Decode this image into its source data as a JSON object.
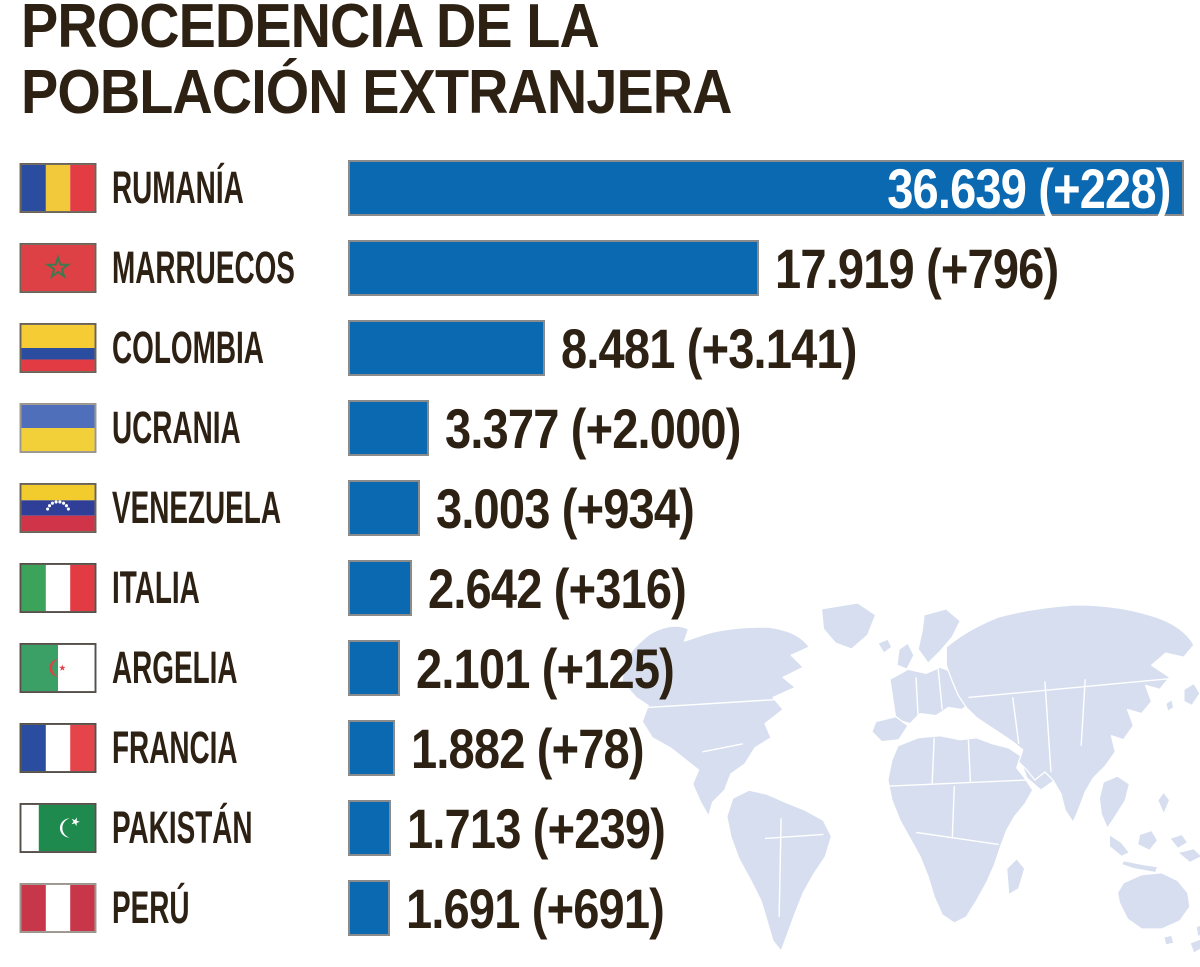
{
  "title": {
    "line1": "PROCEDENCIA DE LA",
    "line2": "POBLACIÓN EXTRANJERA"
  },
  "colors": {
    "text": "#2d2114",
    "bar_fill": "#0b69b2",
    "bar_border": "#8b8b8b",
    "value_inside_text": "#ffffff",
    "map_watermark": "#d6deef"
  },
  "chart_data": {
    "type": "bar",
    "orientation": "horizontal",
    "title": "PROCEDENCIA DE LA POBLACIÓN EXTRANJERA",
    "axis_max": 36639,
    "grid": false,
    "categories": [
      "RUMANÍA",
      "MARRUECOS",
      "COLOMBIA",
      "UCRANIA",
      "VENEZUELA",
      "ITALIA",
      "ARGELIA",
      "FRANCIA",
      "PAKISTÁN",
      "PERÚ"
    ],
    "values": [
      36639,
      17919,
      8481,
      3377,
      3003,
      2642,
      2101,
      1882,
      1713,
      1691
    ],
    "deltas": [
      228,
      796,
      3141,
      2000,
      934,
      316,
      125,
      78,
      239,
      691
    ],
    "value_labels": [
      "36.639 (+228)",
      "17.919 (+796)",
      "8.481 (+3.141)",
      "3.377 (+2.000)",
      "3.003 (+934)",
      "2.642 (+316)",
      "2.101 (+125)",
      "1.882 (+78)",
      "1.713 (+239)",
      "1.691 (+691)"
    ],
    "value_label_positions": [
      "inside",
      "outside",
      "outside",
      "outside",
      "outside",
      "outside",
      "outside",
      "outside",
      "outside",
      "outside"
    ],
    "flag_icons": [
      "romania-flag-icon",
      "morocco-flag-icon",
      "colombia-flag-icon",
      "ukraine-flag-icon",
      "venezuela-flag-icon",
      "italy-flag-icon",
      "algeria-flag-icon",
      "france-flag-icon",
      "pakistan-flag-icon",
      "peru-flag-icon"
    ],
    "background_icon": "world-map-watermark"
  }
}
